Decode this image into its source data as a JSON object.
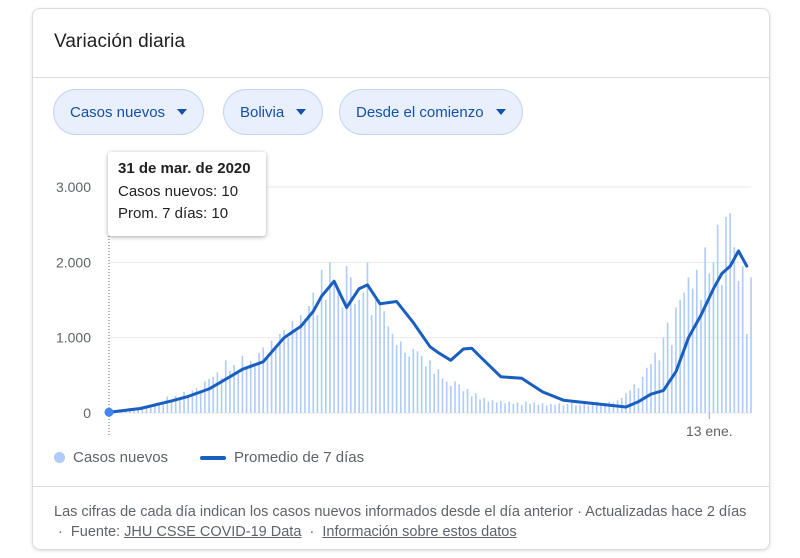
{
  "card": {
    "title": "Variación diaria"
  },
  "filters": [
    {
      "label": "Casos nuevos",
      "icon": "caret-down-icon"
    },
    {
      "label": "Bolivia",
      "icon": "caret-down-icon"
    },
    {
      "label": "Desde el comienzo",
      "icon": "caret-down-icon"
    }
  ],
  "tooltip": {
    "date": "31 de mar. de 2020",
    "cases_line": "Casos nuevos: 10",
    "avg_line": "Prom. 7 días: 10"
  },
  "legend": {
    "bars": "Casos nuevos",
    "line": "Promedio de 7 días"
  },
  "footer": {
    "text": "Las cifras de cada día indican los casos nuevos informados desde el día anterior · Actualizadas hace 2 días",
    "source_prefix": "Fuente:",
    "source_link": "JHU CSSE COVID-19 Data",
    "info_link": "Información sobre estos datos"
  },
  "colors": {
    "bar": "#aecbfa",
    "line": "#1a5fbf",
    "chip_bg": "#e8f0fe",
    "chip_text": "#174ea6"
  },
  "chart_data": {
    "type": "bar",
    "y_ticks": [
      "0",
      "1.000",
      "2.000",
      "3.000"
    ],
    "y_tick_values": [
      0,
      1000,
      2000,
      3000
    ],
    "ylim": [
      0,
      3300
    ],
    "x_tick_labels": [
      {
        "label": "13 ene.",
        "date": "2021-01-13"
      }
    ],
    "x_range": [
      "2020-03-31",
      "2021-02-02"
    ],
    "highlight": {
      "date": "2020-03-31",
      "value": 10
    },
    "series": [
      {
        "name": "Casos nuevos",
        "type": "bar",
        "dates": [
          "2020-03-31",
          "2020-04-02",
          "2020-04-04",
          "2020-04-06",
          "2020-04-08",
          "2020-04-10",
          "2020-04-12",
          "2020-04-14",
          "2020-04-16",
          "2020-04-18",
          "2020-04-20",
          "2020-04-22",
          "2020-04-24",
          "2020-04-26",
          "2020-04-28",
          "2020-04-30",
          "2020-05-02",
          "2020-05-04",
          "2020-05-06",
          "2020-05-08",
          "2020-05-10",
          "2020-05-12",
          "2020-05-14",
          "2020-05-16",
          "2020-05-18",
          "2020-05-20",
          "2020-05-22",
          "2020-05-24",
          "2020-05-26",
          "2020-05-28",
          "2020-05-30",
          "2020-06-01",
          "2020-06-03",
          "2020-06-05",
          "2020-06-07",
          "2020-06-09",
          "2020-06-11",
          "2020-06-13",
          "2020-06-15",
          "2020-06-17",
          "2020-06-19",
          "2020-06-21",
          "2020-06-23",
          "2020-06-25",
          "2020-06-27",
          "2020-06-29",
          "2020-07-01",
          "2020-07-03",
          "2020-07-05",
          "2020-07-07",
          "2020-07-09",
          "2020-07-11",
          "2020-07-13",
          "2020-07-15",
          "2020-07-17",
          "2020-07-19",
          "2020-07-21",
          "2020-07-23",
          "2020-07-25",
          "2020-07-27",
          "2020-07-29",
          "2020-07-31",
          "2020-08-02",
          "2020-08-04",
          "2020-08-06",
          "2020-08-08",
          "2020-08-10",
          "2020-08-12",
          "2020-08-14",
          "2020-08-16",
          "2020-08-18",
          "2020-08-20",
          "2020-08-22",
          "2020-08-24",
          "2020-08-26",
          "2020-08-28",
          "2020-08-30",
          "2020-09-01",
          "2020-09-03",
          "2020-09-05",
          "2020-09-07",
          "2020-09-09",
          "2020-09-11",
          "2020-09-13",
          "2020-09-15",
          "2020-09-17",
          "2020-09-19",
          "2020-09-21",
          "2020-09-23",
          "2020-09-25",
          "2020-09-27",
          "2020-09-29",
          "2020-10-01",
          "2020-10-03",
          "2020-10-05",
          "2020-10-07",
          "2020-10-09",
          "2020-10-11",
          "2020-10-13",
          "2020-10-15",
          "2020-10-17",
          "2020-10-19",
          "2020-10-21",
          "2020-10-23",
          "2020-10-25",
          "2020-10-27",
          "2020-10-29",
          "2020-10-31",
          "2020-11-02",
          "2020-11-04",
          "2020-11-06",
          "2020-11-08",
          "2020-11-10",
          "2020-11-12",
          "2020-11-14",
          "2020-11-16",
          "2020-11-18",
          "2020-11-20",
          "2020-11-22",
          "2020-11-24",
          "2020-11-26",
          "2020-11-28",
          "2020-11-30",
          "2020-12-02",
          "2020-12-04",
          "2020-12-06",
          "2020-12-08",
          "2020-12-10",
          "2020-12-12",
          "2020-12-14",
          "2020-12-16",
          "2020-12-18",
          "2020-12-20",
          "2020-12-22",
          "2020-12-24",
          "2020-12-26",
          "2020-12-28",
          "2020-12-30",
          "2021-01-01",
          "2021-01-03",
          "2021-01-05",
          "2021-01-07",
          "2021-01-09",
          "2021-01-11",
          "2021-01-13",
          "2021-01-15",
          "2021-01-17",
          "2021-01-19",
          "2021-01-21",
          "2021-01-23",
          "2021-01-25",
          "2021-01-27",
          "2021-01-29",
          "2021-01-31",
          "2021-02-02"
        ],
        "values": [
          10,
          15,
          20,
          25,
          30,
          40,
          45,
          50,
          55,
          70,
          80,
          110,
          130,
          150,
          220,
          180,
          230,
          200,
          280,
          230,
          300,
          330,
          300,
          420,
          450,
          480,
          540,
          460,
          700,
          560,
          640,
          560,
          760,
          600,
          690,
          620,
          800,
          870,
          760,
          960,
          900,
          1050,
          1100,
          1000,
          1220,
          1080,
          1300,
          1250,
          1420,
          1600,
          1300,
          1900,
          1500,
          2000,
          1750,
          1650,
          1400,
          1950,
          1800,
          1450,
          1500,
          1600,
          2000,
          1300,
          1500,
          1450,
          1350,
          1150,
          1050,
          900,
          950,
          800,
          750,
          850,
          820,
          760,
          620,
          700,
          520,
          580,
          460,
          420,
          360,
          420,
          380,
          290,
          320,
          220,
          260,
          180,
          200,
          150,
          170,
          140,
          160,
          130,
          150,
          120,
          140,
          110,
          150,
          120,
          140,
          110,
          130,
          100,
          120,
          110,
          130,
          100,
          120,
          140,
          100,
          110,
          130,
          100,
          120,
          150,
          110,
          130,
          150,
          140,
          170,
          200,
          260,
          300,
          380,
          330,
          480,
          600,
          650,
          800,
          700,
          1000,
          1200,
          900,
          1400,
          1500,
          1600,
          1800,
          1650,
          1900,
          1500,
          2200,
          1850,
          2000,
          2500,
          1700,
          2600,
          2650,
          2200,
          1750,
          1950,
          1050,
          1800
        ]
      },
      {
        "name": "Promedio de 7 días",
        "type": "line",
        "dates": [
          "2020-03-31",
          "2020-04-15",
          "2020-04-30",
          "2020-05-08",
          "2020-05-18",
          "2020-05-28",
          "2020-06-03",
          "2020-06-13",
          "2020-06-23",
          "2020-07-01",
          "2020-07-07",
          "2020-07-11",
          "2020-07-17",
          "2020-07-23",
          "2020-07-29",
          "2020-08-02",
          "2020-08-08",
          "2020-08-16",
          "2020-08-24",
          "2020-09-01",
          "2020-09-05",
          "2020-09-11",
          "2020-09-17",
          "2020-09-21",
          "2020-09-25",
          "2020-10-05",
          "2020-10-15",
          "2020-10-25",
          "2020-11-04",
          "2020-11-14",
          "2020-11-24",
          "2020-12-04",
          "2020-12-10",
          "2020-12-16",
          "2020-12-22",
          "2020-12-28",
          "2021-01-03",
          "2021-01-09",
          "2021-01-15",
          "2021-01-19",
          "2021-01-23",
          "2021-01-27",
          "2021-01-31"
        ],
        "values": [
          10,
          60,
          160,
          220,
          320,
          480,
          580,
          680,
          1000,
          1150,
          1350,
          1550,
          1750,
          1400,
          1650,
          1700,
          1450,
          1480,
          1200,
          880,
          800,
          700,
          850,
          860,
          750,
          480,
          460,
          280,
          170,
          140,
          110,
          80,
          150,
          250,
          300,
          550,
          1000,
          1300,
          1650,
          1850,
          1950,
          2150,
          1950
        ]
      }
    ]
  }
}
